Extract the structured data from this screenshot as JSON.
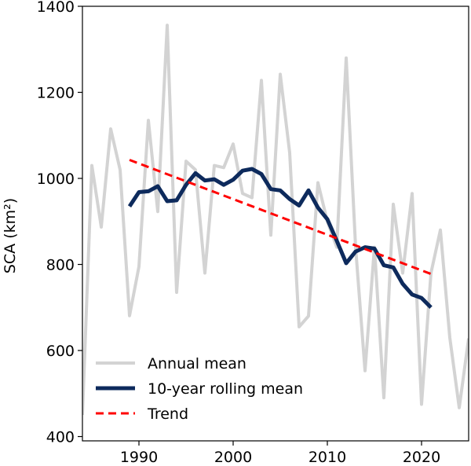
{
  "chart_data": {
    "type": "line",
    "title": "",
    "xlabel": "",
    "ylabel": "SCA (km²)",
    "xlim": [
      1984,
      2025
    ],
    "ylim": [
      390,
      1400
    ],
    "xticks": [
      1990,
      2000,
      2010,
      2020
    ],
    "yticks": [
      400,
      600,
      800,
      1000,
      1200,
      1400
    ],
    "grid": false,
    "legend_position": "bottom-left",
    "series": [
      {
        "name": "Annual mean",
        "color": "#d3d3d3",
        "style": "solid",
        "x": [
          1984,
          1985,
          1986,
          1987,
          1988,
          1989,
          1990,
          1991,
          1992,
          1993,
          1994,
          1995,
          1996,
          1997,
          1998,
          1999,
          2000,
          2001,
          2002,
          2003,
          2004,
          2005,
          2006,
          2007,
          2008,
          2009,
          2010,
          2011,
          2012,
          2013,
          2014,
          2015,
          2016,
          2017,
          2018,
          2019,
          2020,
          2021,
          2022,
          2023,
          2024,
          2025
        ],
        "values": [
          450,
          1030,
          887,
          1115,
          1020,
          681,
          795,
          1135,
          923,
          1356,
          735,
          1040,
          1020,
          780,
          1030,
          1025,
          1080,
          965,
          955,
          1228,
          868,
          1242,
          1060,
          655,
          680,
          990,
          900,
          840,
          1280,
          840,
          553,
          840,
          490,
          940,
          780,
          965,
          475,
          780,
          880,
          630,
          467,
          628
        ]
      },
      {
        "name": "10-year rolling mean",
        "color": "#0d2a5c",
        "style": "solid",
        "x": [
          1989,
          1990,
          1991,
          1992,
          1993,
          1994,
          1995,
          1996,
          1997,
          1998,
          1999,
          2000,
          2001,
          2002,
          2003,
          2004,
          2005,
          2006,
          2007,
          2008,
          2009,
          2010,
          2011,
          2012,
          2013,
          2014,
          2015,
          2016,
          2017,
          2018,
          2019,
          2020,
          2021
        ],
        "values": [
          935,
          968,
          970,
          982,
          947,
          949,
          985,
          1012,
          995,
          998,
          985,
          997,
          1018,
          1022,
          1010,
          975,
          972,
          952,
          937,
          972,
          932,
          905,
          855,
          803,
          830,
          840,
          837,
          798,
          793,
          755,
          730,
          722,
          700
        ]
      },
      {
        "name": "Trend",
        "color": "#ff0000",
        "style": "dashed",
        "x": [
          1989,
          2021
        ],
        "values": [
          1043,
          778
        ]
      }
    ]
  }
}
